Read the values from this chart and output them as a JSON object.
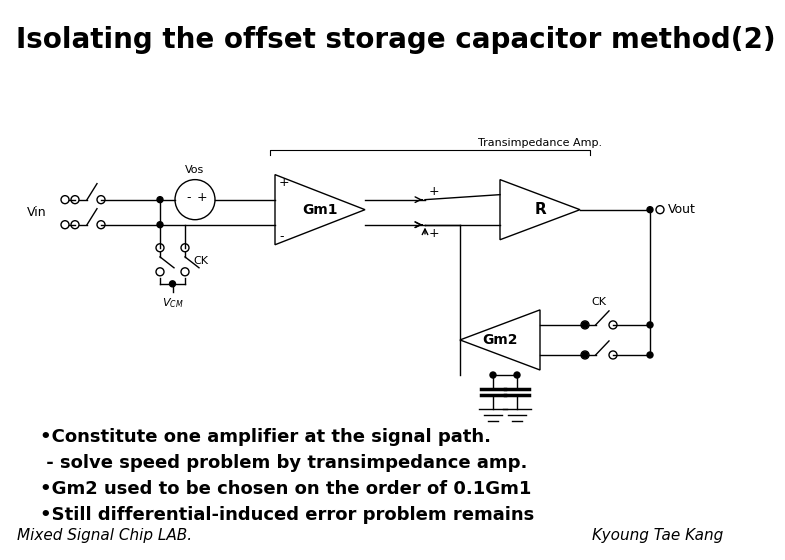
{
  "title": "Isolating the offset storage capacitor method(2)",
  "title_bg": "#dda0dd",
  "title_fontsize": 20,
  "title_fontweight": "bold",
  "body_bg": "#ffffff",
  "footer_bg": "#ff77ff",
  "footer_left": "Mixed Signal Chip LAB.",
  "footer_right": "Kyoung Tae Kang",
  "footer_fontsize": 11,
  "bullets": [
    "•Constitute one amplifier at the signal path.",
    " - solve speed problem by transimpedance amp.",
    "•Gm2 used to be chosen on the order of 0.1Gm1",
    "•Still differential-induced error problem remains"
  ],
  "bullet_fontsize": 13,
  "label_transimpedance": "Transimpedance Amp.",
  "label_Gm1": "Gm1",
  "label_Gm2": "Gm2",
  "label_R": "R",
  "label_Vos": "Vos",
  "label_Vin": "Vin",
  "label_Vout": "Vout",
  "label_CK": "CK",
  "label_VCM": "V_{CM}"
}
